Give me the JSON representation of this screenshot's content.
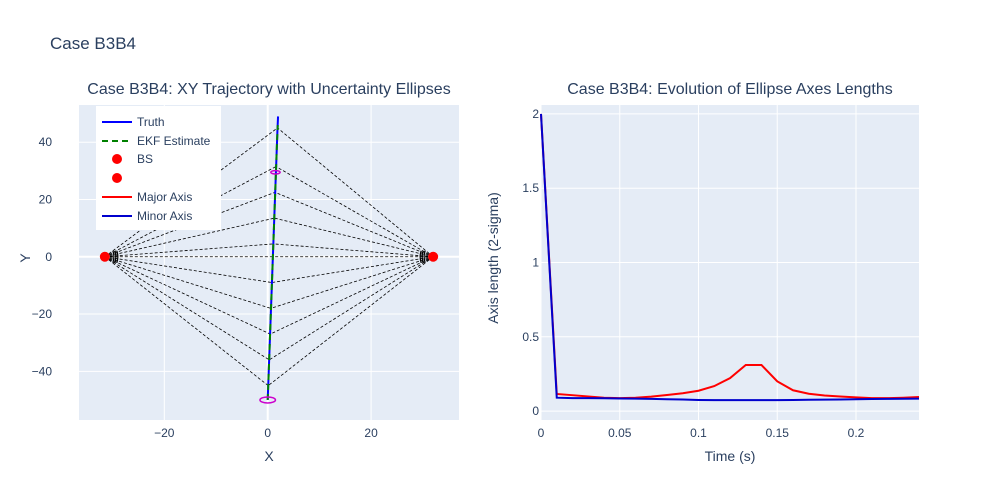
{
  "figure": {
    "title": "Case B3B4",
    "colors": {
      "plot_bg": "#e5ecf6",
      "grid": "#ffffff",
      "text": "#2a3f5f",
      "truth": "#0000ff",
      "ekf": "#008000",
      "bs": "#ff0000",
      "major": "#ff0000",
      "minor": "#0000cd",
      "ellipse": "#cc00cc",
      "rays": "#000000"
    }
  },
  "chart_data": [
    {
      "type": "line",
      "title": "Case B3B4: XY Trajectory with Uncertainty Ellipses",
      "xlabel": "X",
      "ylabel": "Y",
      "xlim": [
        -36.5,
        37
      ],
      "ylim": [
        -57,
        53
      ],
      "xticks": [
        -20,
        0,
        20
      ],
      "yticks": [
        -40,
        -20,
        0,
        20,
        40
      ],
      "grid": true,
      "legend_position": "top-left",
      "legend": [
        "Truth",
        "EKF Estimate",
        "BS",
        "",
        "Major Axis",
        "Minor Axis"
      ],
      "series": [
        {
          "name": "Truth",
          "x": [
            0,
            0.1,
            0.2,
            0.3,
            0.4,
            0.5,
            0.6,
            0.7,
            0.8,
            0.9,
            1.0,
            1.1,
            1.2,
            1.3,
            1.4,
            1.5,
            1.6,
            1.7,
            1.8,
            1.9,
            2.0
          ],
          "y": [
            -50,
            -45,
            -40,
            -35,
            -30,
            -25,
            -20,
            -15,
            -10,
            -5,
            0,
            5,
            10,
            15,
            20,
            25,
            30,
            35,
            40,
            45,
            49
          ]
        },
        {
          "name": "EKF Estimate",
          "x": [
            0,
            0.1,
            0.2,
            0.3,
            0.4,
            0.5,
            0.6,
            0.7,
            0.8,
            0.9,
            1.0,
            1.1,
            1.2,
            1.3,
            1.4,
            1.5,
            1.6,
            1.7,
            1.8,
            1.9,
            1.95
          ],
          "y": [
            -50,
            -45,
            -40,
            -35,
            -30,
            -25,
            -20,
            -15,
            -10,
            -5,
            0,
            5,
            10,
            15,
            20,
            25,
            30,
            35,
            40,
            44,
            46
          ]
        },
        {
          "name": "BS",
          "x": [
            -31.5,
            32
          ],
          "y": [
            0,
            0
          ]
        }
      ],
      "rays_y": [
        -45,
        -36,
        -27,
        -18,
        -9,
        0,
        4.5,
        13.5,
        22.5,
        31.5,
        45
      ],
      "ellipses": [
        {
          "x": 0,
          "y": -50,
          "a": 1.0,
          "b": 0.7
        },
        {
          "x": 1.5,
          "y": 29.5,
          "a": 0.6,
          "b": 0.4
        }
      ]
    },
    {
      "type": "line",
      "title": "Case B3B4: Evolution of Ellipse Axes Lengths",
      "xlabel": "Time (s)",
      "ylabel": "Axis length (2-sigma)",
      "xlim": [
        0,
        0.24
      ],
      "ylim": [
        -0.06,
        2.06
      ],
      "xticks": [
        0,
        0.05,
        0.1,
        0.15,
        0.2
      ],
      "xtick_labels": [
        "0",
        "0.05",
        "0.1",
        "0.15",
        "0.2"
      ],
      "yticks": [
        0,
        0.5,
        1,
        1.5,
        2
      ],
      "ytick_labels": [
        "0",
        "0.5",
        "1",
        "1.5",
        "2"
      ],
      "grid": true,
      "series": [
        {
          "name": "Major Axis",
          "x": [
            0,
            0.01,
            0.02,
            0.03,
            0.04,
            0.05,
            0.06,
            0.07,
            0.08,
            0.09,
            0.1,
            0.11,
            0.12,
            0.13,
            0.14,
            0.15,
            0.16,
            0.17,
            0.18,
            0.19,
            0.2,
            0.21,
            0.22,
            0.23,
            0.24
          ],
          "y": [
            2.0,
            0.115,
            0.107,
            0.098,
            0.09,
            0.087,
            0.09,
            0.097,
            0.108,
            0.12,
            0.137,
            0.168,
            0.222,
            0.31,
            0.31,
            0.2,
            0.14,
            0.117,
            0.105,
            0.098,
            0.092,
            0.087,
            0.087,
            0.09,
            0.095
          ]
        },
        {
          "name": "Minor Axis",
          "x": [
            0,
            0.01,
            0.02,
            0.03,
            0.04,
            0.05,
            0.06,
            0.07,
            0.08,
            0.09,
            0.1,
            0.11,
            0.12,
            0.13,
            0.14,
            0.15,
            0.16,
            0.17,
            0.18,
            0.19,
            0.2,
            0.21,
            0.22,
            0.23,
            0.24
          ],
          "y": [
            2.0,
            0.09,
            0.087,
            0.087,
            0.086,
            0.085,
            0.084,
            0.082,
            0.08,
            0.078,
            0.075,
            0.074,
            0.074,
            0.074,
            0.074,
            0.074,
            0.075,
            0.076,
            0.077,
            0.078,
            0.08,
            0.081,
            0.082,
            0.083,
            0.084
          ]
        }
      ]
    }
  ]
}
